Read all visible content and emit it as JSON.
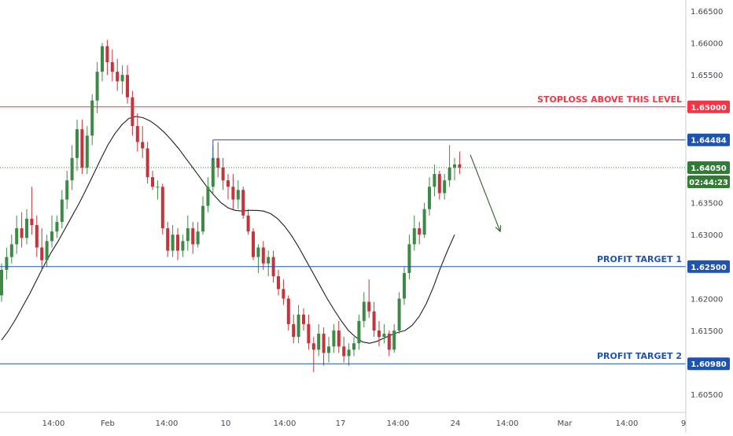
{
  "chart_data": {
    "type": "candlestick",
    "y_ticks": [
      "1.66500",
      "1.66000",
      "1.65500",
      "1.65000",
      "1.64500",
      "1.64000",
      "1.63500",
      "1.63000",
      "1.62500",
      "1.62000",
      "1.61500",
      "1.61000",
      "1.60500"
    ],
    "x_ticks": [
      "14:00",
      "Feb",
      "14:00",
      "10",
      "14:00",
      "17",
      "14:00",
      "24",
      "14:00",
      "Mar",
      "14:00",
      "9"
    ],
    "ylim": [
      1.603,
      1.6675
    ],
    "levels": [
      {
        "name": "stoploss",
        "value": 1.65,
        "badge": "1.65000",
        "annotation": "STOPLOSS ABOVE THIS LEVEL",
        "color": "#f23645"
      },
      {
        "name": "resistance",
        "value": 1.64484,
        "badge": "1.64484",
        "annotation": "",
        "color": "#1e53b0"
      },
      {
        "name": "profit-target-1",
        "value": 1.625,
        "badge": "1.62500",
        "annotation": "PROFIT TARGET 1",
        "color": "#1e53b0"
      },
      {
        "name": "profit-target-2",
        "value": 1.6098,
        "badge": "1.60980",
        "annotation": "PROFIT TARGET 2",
        "color": "#1e53b0"
      }
    ],
    "last_price": {
      "value": 1.6405,
      "label": "1.64050",
      "countdown": "02:44:23",
      "color": "#2e7d32"
    },
    "candles": [
      [
        1.6205,
        1.6255,
        1.6195,
        1.6245
      ],
      [
        1.6245,
        1.628,
        1.623,
        1.6265
      ],
      [
        1.6265,
        1.63,
        1.6255,
        1.6285
      ],
      [
        1.6285,
        1.633,
        1.627,
        1.631
      ],
      [
        1.631,
        1.6335,
        1.628,
        1.6295
      ],
      [
        1.6295,
        1.634,
        1.6285,
        1.6325
      ],
      [
        1.6325,
        1.6375,
        1.63,
        1.6315
      ],
      [
        1.6315,
        1.633,
        1.6265,
        1.628
      ],
      [
        1.628,
        1.631,
        1.6245,
        1.626
      ],
      [
        1.626,
        1.63,
        1.625,
        1.629
      ],
      [
        1.629,
        1.633,
        1.628,
        1.6305
      ],
      [
        1.6305,
        1.633,
        1.6295,
        1.632
      ],
      [
        1.632,
        1.637,
        1.631,
        1.6355
      ],
      [
        1.6355,
        1.64,
        1.634,
        1.6385
      ],
      [
        1.6385,
        1.644,
        1.637,
        1.642
      ],
      [
        1.642,
        1.648,
        1.64,
        1.6465
      ],
      [
        1.6465,
        1.648,
        1.6395,
        1.6405
      ],
      [
        1.6405,
        1.647,
        1.6395,
        1.6455
      ],
      [
        1.6455,
        1.652,
        1.644,
        1.651
      ],
      [
        1.651,
        1.657,
        1.649,
        1.6555
      ],
      [
        1.6555,
        1.66,
        1.654,
        1.6595
      ],
      [
        1.6595,
        1.6605,
        1.655,
        1.657
      ],
      [
        1.657,
        1.659,
        1.654,
        1.6555
      ],
      [
        1.6555,
        1.6575,
        1.6525,
        1.654
      ],
      [
        1.654,
        1.6565,
        1.652,
        1.655
      ],
      [
        1.655,
        1.6565,
        1.6505,
        1.6515
      ],
      [
        1.6515,
        1.6525,
        1.6455,
        1.647
      ],
      [
        1.647,
        1.649,
        1.643,
        1.6445
      ],
      [
        1.6445,
        1.647,
        1.642,
        1.6435
      ],
      [
        1.6435,
        1.6445,
        1.638,
        1.639
      ],
      [
        1.639,
        1.64,
        1.637,
        1.6375
      ],
      [
        1.6375,
        1.6385,
        1.6355,
        1.6375
      ],
      [
        1.6375,
        1.638,
        1.63,
        1.631
      ],
      [
        1.631,
        1.632,
        1.6265,
        1.6275
      ],
      [
        1.6275,
        1.6315,
        1.6265,
        1.63
      ],
      [
        1.63,
        1.631,
        1.626,
        1.6275
      ],
      [
        1.6275,
        1.63,
        1.6265,
        1.629
      ],
      [
        1.629,
        1.633,
        1.6275,
        1.631
      ],
      [
        1.631,
        1.632,
        1.627,
        1.6285
      ],
      [
        1.6285,
        1.632,
        1.628,
        1.6305
      ],
      [
        1.6305,
        1.636,
        1.63,
        1.6345
      ],
      [
        1.6345,
        1.639,
        1.6335,
        1.6375
      ],
      [
        1.6375,
        1.644,
        1.6365,
        1.642
      ],
      [
        1.642,
        1.6445,
        1.639,
        1.6405
      ],
      [
        1.6405,
        1.642,
        1.637,
        1.6385
      ],
      [
        1.6385,
        1.6395,
        1.6355,
        1.6375
      ],
      [
        1.6375,
        1.6395,
        1.634,
        1.6355
      ],
      [
        1.6355,
        1.6385,
        1.634,
        1.637
      ],
      [
        1.637,
        1.6375,
        1.6325,
        1.633
      ],
      [
        1.633,
        1.634,
        1.63,
        1.6305
      ],
      [
        1.6305,
        1.631,
        1.626,
        1.6265
      ],
      [
        1.6265,
        1.6285,
        1.624,
        1.628
      ],
      [
        1.628,
        1.629,
        1.6245,
        1.6255
      ],
      [
        1.6255,
        1.6275,
        1.6235,
        1.6265
      ],
      [
        1.6265,
        1.6275,
        1.6225,
        1.6235
      ],
      [
        1.6235,
        1.6245,
        1.6205,
        1.6215
      ],
      [
        1.6215,
        1.623,
        1.619,
        1.62
      ],
      [
        1.62,
        1.6205,
        1.615,
        1.616
      ],
      [
        1.616,
        1.6175,
        1.613,
        1.614
      ],
      [
        1.614,
        1.619,
        1.613,
        1.6175
      ],
      [
        1.6175,
        1.6185,
        1.615,
        1.616
      ],
      [
        1.616,
        1.6175,
        1.612,
        1.613
      ],
      [
        1.613,
        1.614,
        1.6085,
        1.612
      ],
      [
        1.612,
        1.616,
        1.611,
        1.6145
      ],
      [
        1.6145,
        1.6155,
        1.6095,
        1.6115
      ],
      [
        1.6115,
        1.614,
        1.61,
        1.6125
      ],
      [
        1.6125,
        1.616,
        1.6115,
        1.615
      ],
      [
        1.615,
        1.6165,
        1.6115,
        1.6125
      ],
      [
        1.6125,
        1.614,
        1.61,
        1.611
      ],
      [
        1.611,
        1.613,
        1.6095,
        1.612
      ],
      [
        1.612,
        1.614,
        1.611,
        1.613
      ],
      [
        1.613,
        1.6175,
        1.612,
        1.6165
      ],
      [
        1.6165,
        1.621,
        1.6155,
        1.6195
      ],
      [
        1.6195,
        1.623,
        1.617,
        1.618
      ],
      [
        1.618,
        1.6195,
        1.614,
        1.615
      ],
      [
        1.615,
        1.6165,
        1.6125,
        1.614
      ],
      [
        1.614,
        1.616,
        1.613,
        1.6145
      ],
      [
        1.6145,
        1.615,
        1.611,
        1.612
      ],
      [
        1.612,
        1.616,
        1.6115,
        1.615
      ],
      [
        1.615,
        1.621,
        1.6145,
        1.62
      ],
      [
        1.62,
        1.625,
        1.619,
        1.624
      ],
      [
        1.624,
        1.63,
        1.623,
        1.6285
      ],
      [
        1.6285,
        1.633,
        1.6275,
        1.631
      ],
      [
        1.631,
        1.632,
        1.6285,
        1.63
      ],
      [
        1.63,
        1.635,
        1.6295,
        1.634
      ],
      [
        1.634,
        1.639,
        1.633,
        1.6375
      ],
      [
        1.6375,
        1.641,
        1.636,
        1.6395
      ],
      [
        1.6395,
        1.64,
        1.6355,
        1.6365
      ],
      [
        1.6365,
        1.6395,
        1.6355,
        1.6385
      ],
      [
        1.6385,
        1.644,
        1.6375,
        1.6405
      ],
      [
        1.6405,
        1.642,
        1.6385,
        1.641
      ],
      [
        1.641,
        1.643,
        1.6395,
        1.6405
      ]
    ],
    "moving_average": [
      1.6135,
      1.615,
      1.6168,
      1.6188,
      1.6208,
      1.623,
      1.6252,
      1.6272,
      1.629,
      1.631,
      1.633,
      1.635,
      1.6372,
      1.6395,
      1.6418,
      1.644,
      1.6458,
      1.6472,
      1.6482,
      1.6485,
      1.6483,
      1.6478,
      1.647,
      1.646,
      1.6448,
      1.6435,
      1.642,
      1.6405,
      1.639,
      1.6375,
      1.6362,
      1.635,
      1.6342,
      1.6338,
      1.6337,
      1.6338,
      1.6338,
      1.6337,
      1.6333,
      1.6325,
      1.6313,
      1.6298,
      1.628,
      1.626,
      1.624,
      1.622,
      1.62,
      1.6182,
      1.6165,
      1.615,
      1.614,
      1.6132,
      1.613,
      1.6133,
      1.6138,
      1.6143,
      1.6147,
      1.615,
      1.6158,
      1.6172,
      1.6192,
      1.6218,
      1.6248,
      1.6275,
      1.63
    ],
    "forecast_arrow": {
      "from_price": 1.6425,
      "to_price": 1.6305,
      "color": "#3d6b35"
    }
  }
}
